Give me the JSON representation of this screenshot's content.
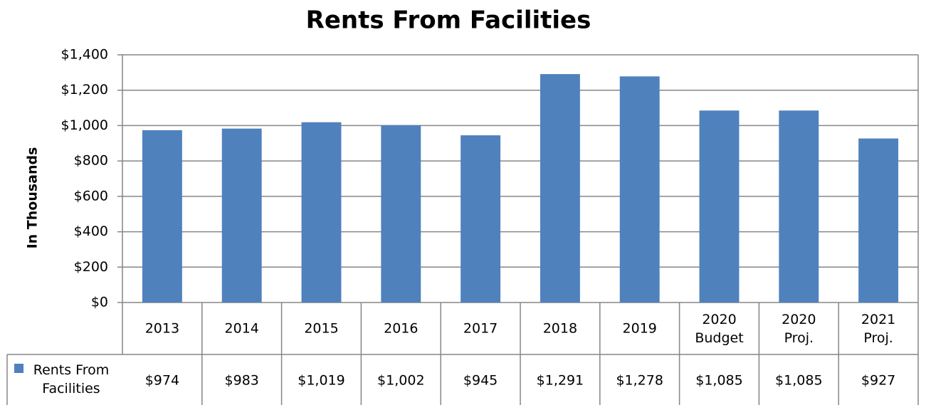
{
  "chart_data": {
    "type": "bar",
    "title": "Rents From Facilities",
    "y_label": "In Thousands",
    "categories": [
      "2013",
      "2014",
      "2015",
      "2016",
      "2017",
      "2018",
      "2019",
      "2020 Budget",
      "2020 Proj.",
      "2021 Proj."
    ],
    "series": [
      {
        "name": "Rents From Facilities",
        "color": "#4f81bd",
        "values": [
          974,
          983,
          1019,
          1002,
          945,
          1291,
          1278,
          1085,
          1085,
          927
        ],
        "value_labels": [
          "$974",
          "$983",
          "$1,019",
          "$1,002",
          "$945",
          "$1,291",
          "$1,278",
          "$1,085",
          "$1,085",
          "$927"
        ]
      }
    ],
    "ylim": [
      0,
      1400
    ],
    "yticks": [
      {
        "value": 0,
        "label": "$0"
      },
      {
        "value": 200,
        "label": "$200"
      },
      {
        "value": 400,
        "label": "$400"
      },
      {
        "value": 600,
        "label": "$600"
      },
      {
        "value": 800,
        "label": "$800"
      },
      {
        "value": 1000,
        "label": "$1,000"
      },
      {
        "value": 1200,
        "label": "$1,200"
      },
      {
        "value": 1400,
        "label": "$1,400"
      }
    ],
    "grid": true
  }
}
